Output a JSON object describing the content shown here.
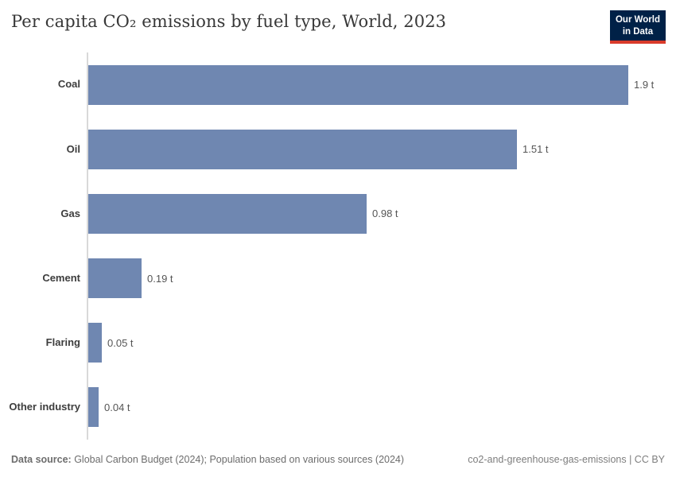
{
  "header": {
    "logo": {
      "line1": "Our World",
      "line2": "in Data"
    }
  },
  "chart_data": {
    "type": "bar",
    "orientation": "horizontal",
    "title": "Per capita CO₂ emissions by fuel type, World, 2023",
    "categories": [
      "Coal",
      "Oil",
      "Gas",
      "Cement",
      "Flaring",
      "Other industry"
    ],
    "values": [
      1.9,
      1.51,
      0.98,
      0.19,
      0.05,
      0.04
    ],
    "value_labels": [
      "1.9 t",
      "1.51 t",
      "0.98 t",
      "0.19 t",
      "0.05 t",
      "0.04 t"
    ],
    "unit": "t",
    "xlim": [
      0,
      1.9
    ],
    "grid": false,
    "legend": "none"
  },
  "footer": {
    "source_label": "Data source:",
    "source_text": " Global Carbon Budget (2024); Population based on various sources (2024)",
    "note_right": "co2-and-greenhouse-gas-emissions | CC BY"
  },
  "colors": {
    "bar": "#6f87b1",
    "axis": "#d9d9d9",
    "logo_bg": "#002147",
    "logo_red": "#d93b2b",
    "title_text": "#383838",
    "category_text": "#3d3d3d",
    "value_text": "#555555"
  }
}
